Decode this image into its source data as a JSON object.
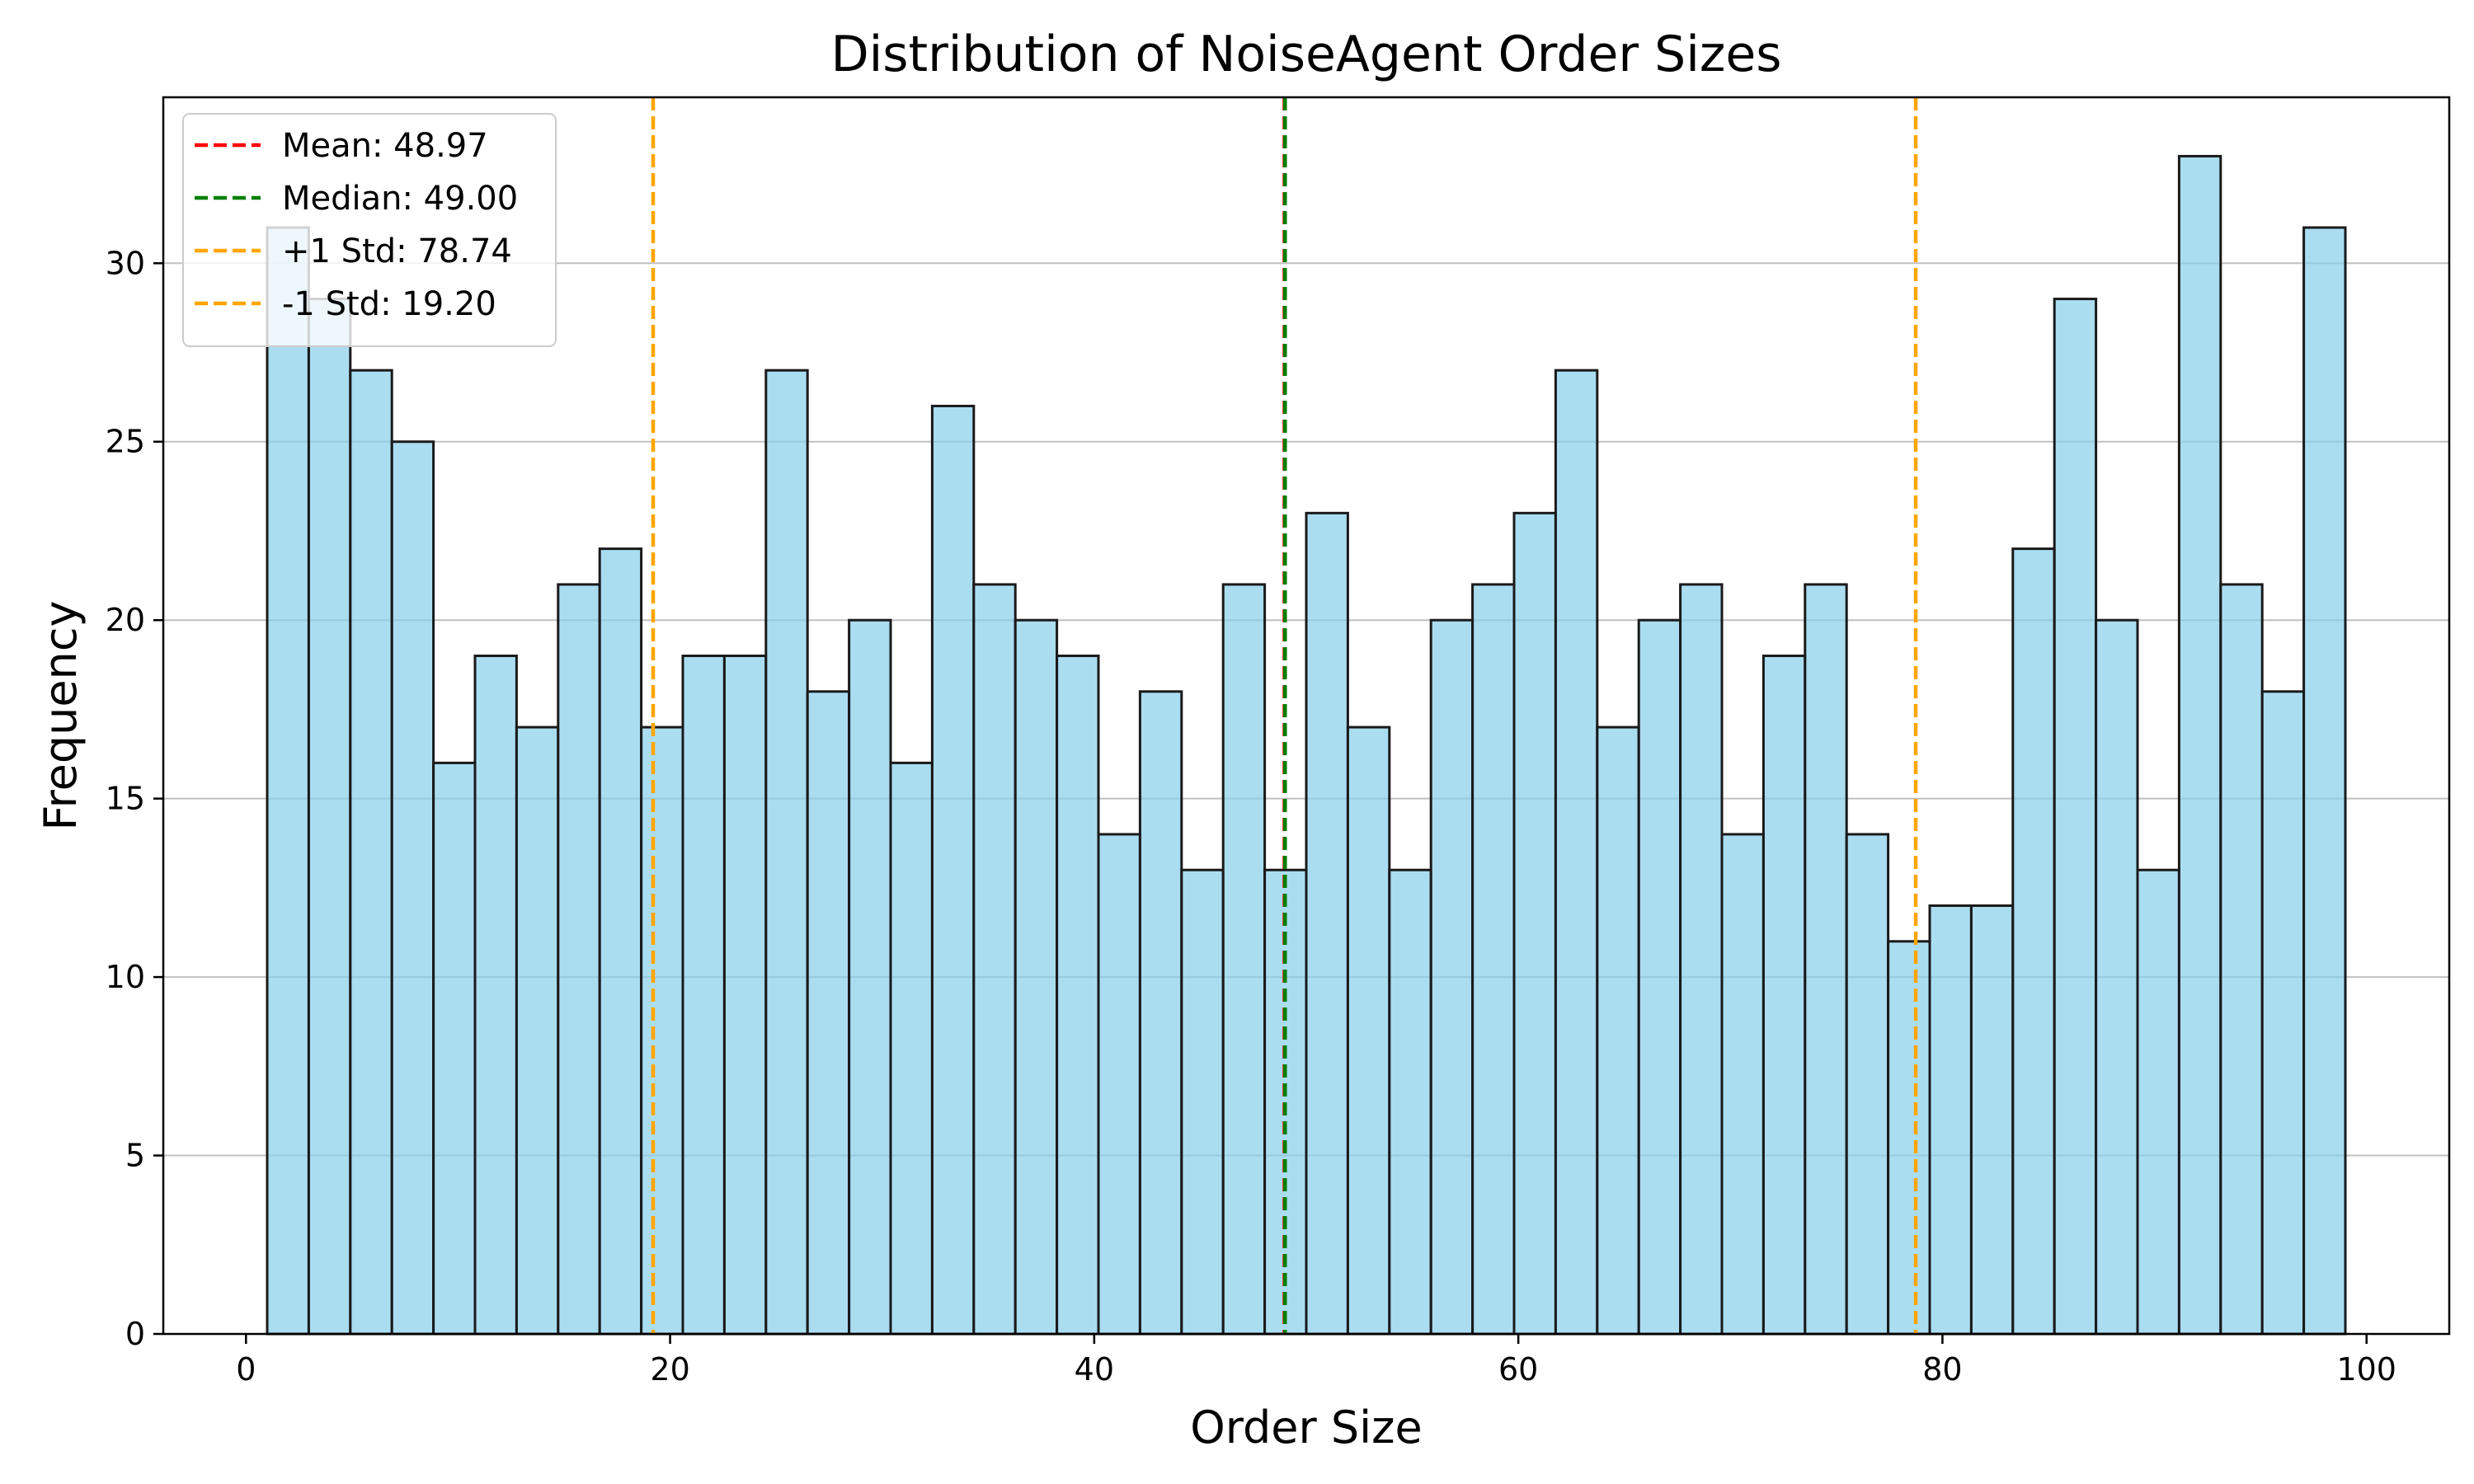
{
  "chart_data": {
    "type": "bar",
    "title": "Distribution of NoiseAgent Order Sizes",
    "xlabel": "Order Size",
    "ylabel": "Frequency",
    "xlim": [
      -3.9,
      103.9
    ],
    "ylim": [
      0,
      34.65
    ],
    "bin_start": 1,
    "bin_width": 1.96,
    "values": [
      31,
      29,
      27,
      25,
      16,
      19,
      17,
      21,
      22,
      17,
      19,
      19,
      27,
      18,
      20,
      16,
      26,
      21,
      20,
      19,
      14,
      18,
      13,
      21,
      13,
      23,
      17,
      13,
      20,
      21,
      23,
      27,
      17,
      20,
      21,
      14,
      19,
      21,
      14,
      11,
      12,
      12,
      22,
      29,
      20,
      13,
      33,
      21,
      18,
      31
    ],
    "xticks": [
      0,
      20,
      40,
      60,
      80,
      100
    ],
    "xtick_labels": [
      "0",
      "20",
      "40",
      "60",
      "80",
      "100"
    ],
    "yticks": [
      0,
      5,
      10,
      15,
      20,
      25,
      30
    ],
    "ytick_labels": [
      "0",
      "5",
      "10",
      "15",
      "20",
      "25",
      "30"
    ],
    "grid": "y",
    "bar_color": "#87ceeb",
    "bar_edge_color": "#1a1a1a",
    "reference_lines": [
      {
        "label": "Mean: 48.97",
        "value": 48.97,
        "color": "#ff0000"
      },
      {
        "label": "Median: 49.00",
        "value": 49.0,
        "color": "#008000"
      },
      {
        "label": "+1 Std: 78.74",
        "value": 78.74,
        "color": "#ffa500"
      },
      {
        "label": "-1 Std: 19.20",
        "value": 19.2,
        "color": "#ffa500"
      }
    ],
    "legend_position": "top-left"
  }
}
